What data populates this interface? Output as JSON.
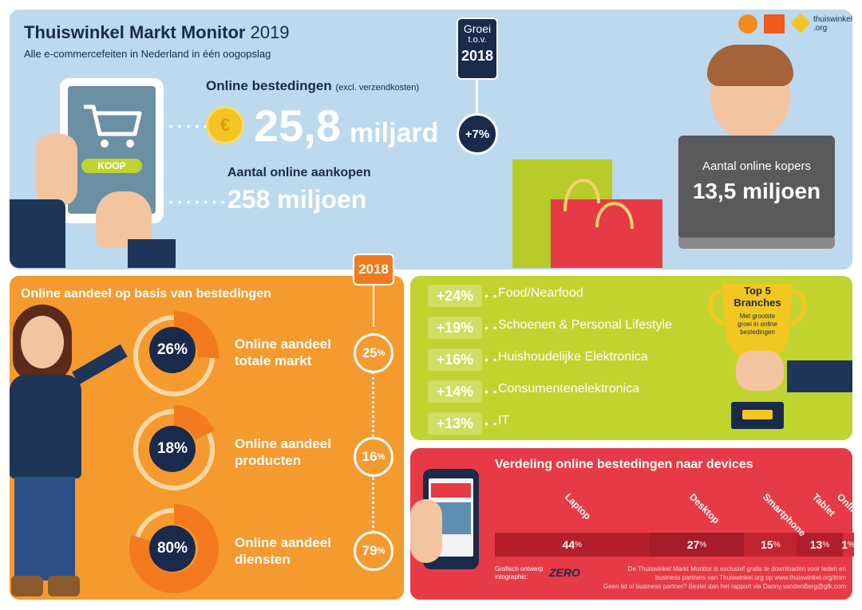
{
  "header": {
    "title_bold": "Thuiswinkel Markt Monitor",
    "title_year": "2019",
    "subtitle": "Alle e-commercefeiten in Nederland in één oogopslag",
    "logos": [
      "gfk-logo",
      "gfk-badge-logo",
      "thuiswinkel-logo"
    ],
    "logo_text": "thuiswinkel",
    "logo_subtext": ".org"
  },
  "growth_badge": {
    "line1": "Groei",
    "line2": "t.o.v.",
    "year": "2018",
    "value": "+7%"
  },
  "tablet": {
    "button_label": "KOOP"
  },
  "spending": {
    "label": "Online bestedingen",
    "note": "(excl. verzendkosten)",
    "value": "25,8",
    "unit": "miljard"
  },
  "purchases": {
    "label": "Aantal online aankopen",
    "value": "258 miljoen"
  },
  "buyers": {
    "label": "Aantal online kopers",
    "value": "13,5 miljoen"
  },
  "online_share": {
    "heading": "Online aandeel op basis van bestedingen",
    "year_badge": "2018",
    "items": [
      {
        "pct": "26%",
        "fill": 0.26,
        "label1": "Online aandeel",
        "label2": "totale markt",
        "prev_value": "25",
        "prev_unit": "%"
      },
      {
        "pct": "18%",
        "fill": 0.18,
        "label1": "Online aandeel",
        "label2": "producten",
        "prev_value": "16",
        "prev_unit": "%"
      },
      {
        "pct": "80%",
        "fill": 0.8,
        "label1": "Online aandeel",
        "label2": "diensten",
        "prev_value": "79",
        "prev_unit": "%"
      }
    ]
  },
  "top5": {
    "title1": "Top 5",
    "title2": "Branches",
    "sub": "Met grootste groei in online bestedingen",
    "items": [
      {
        "growth": "+24%",
        "name": "Food/Nearfood"
      },
      {
        "growth": "+19%",
        "name": "Schoenen & Personal Lifestyle"
      },
      {
        "growth": "+16%",
        "name": "Huishoudelijke Elektronica"
      },
      {
        "growth": "+14%",
        "name": "Consumentenelektronica"
      },
      {
        "growth": "+13%",
        "name": "IT"
      }
    ]
  },
  "devices": {
    "heading": "Verdeling online bestedingen naar devices",
    "segments": [
      {
        "name": "Laptop",
        "value": 44,
        "label": "44",
        "unit": "%",
        "color": "#b3202c"
      },
      {
        "name": "Desktop",
        "value": 27,
        "label": "27",
        "unit": "%",
        "color": "#a61c28"
      },
      {
        "name": "Smartphone",
        "value": 15,
        "label": "15",
        "unit": "%",
        "color": "#c0242f"
      },
      {
        "name": "Tablet",
        "value": 13,
        "label": "13",
        "unit": "%",
        "color": "#b01e2a"
      },
      {
        "name": "Online in de winkel",
        "value": 1,
        "label": "1",
        "unit": "%",
        "color": "#d12f3a"
      }
    ],
    "credit_line1": "Grafisch ontwerp",
    "credit_line2": "infographic:",
    "credit_brand": "ZERO",
    "footer_line1": "De Thuiswinkel Markt Monitor is exclusief gratis te downloaden voor leden en",
    "footer_line2": "business partners van Thuiswinkel.org op www.thuiswinkel.org/tmm",
    "footer_line3": "Geen lid of business partner? Bestel dan het rapport via Danny.vandenBerg@gfk.com"
  },
  "colors": {
    "navy": "#1a2a4a",
    "orange": "#f59a2e",
    "green": "#c1d32f",
    "red": "#e63b46",
    "sky": "#bcd9ee"
  }
}
